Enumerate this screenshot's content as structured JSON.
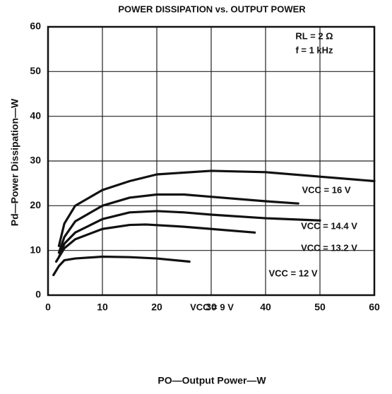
{
  "chart_data": {
    "type": "line",
    "title": "POWER DISSIPATION vs. OUTPUT POWER",
    "xlabel": "PO—Output Power—W",
    "ylabel": "Pd—Power Dissipation—W",
    "annotations": [
      "RL = 2 Ω",
      "f = 1 kHz"
    ],
    "xlim": [
      0,
      60
    ],
    "ylim": [
      0,
      60
    ],
    "xticks": [
      0,
      10,
      20,
      30,
      40,
      50,
      60
    ],
    "yticks": [
      0,
      10,
      20,
      30,
      40,
      50,
      60
    ],
    "grid": true,
    "series": [
      {
        "name": "VCC = 16 V",
        "color": "#111111",
        "x": [
          2,
          3,
          5,
          10,
          15,
          20,
          30,
          40,
          50,
          60
        ],
        "values": [
          11,
          16,
          20,
          23.5,
          25.5,
          27,
          27.8,
          27.5,
          26.5,
          25.5
        ]
      },
      {
        "name": "VCC = 14.4 V",
        "color": "#111111",
        "x": [
          2,
          3,
          5,
          10,
          15,
          20,
          25,
          30,
          40,
          46
        ],
        "values": [
          9.5,
          13,
          16.5,
          20,
          21.8,
          22.5,
          22.5,
          22,
          21,
          20.5
        ]
      },
      {
        "name": "VCC = 13.2 V",
        "color": "#111111",
        "x": [
          2,
          3,
          5,
          10,
          15,
          20,
          25,
          30,
          40,
          50
        ],
        "values": [
          8.5,
          11.5,
          14,
          17,
          18.5,
          18.8,
          18.5,
          18,
          17.2,
          16.7
        ]
      },
      {
        "name": "VCC = 12 V",
        "color": "#111111",
        "x": [
          1.5,
          3,
          5,
          10,
          15,
          18,
          25,
          30,
          38
        ],
        "values": [
          7.5,
          10.5,
          12.5,
          14.8,
          15.7,
          15.8,
          15.3,
          14.8,
          14
        ]
      },
      {
        "name": "VCC = 9 V",
        "color": "#111111",
        "x": [
          1,
          2,
          3,
          5,
          10,
          15,
          20,
          26
        ],
        "values": [
          4.5,
          6.5,
          7.8,
          8.2,
          8.6,
          8.5,
          8.2,
          7.5
        ]
      }
    ]
  }
}
